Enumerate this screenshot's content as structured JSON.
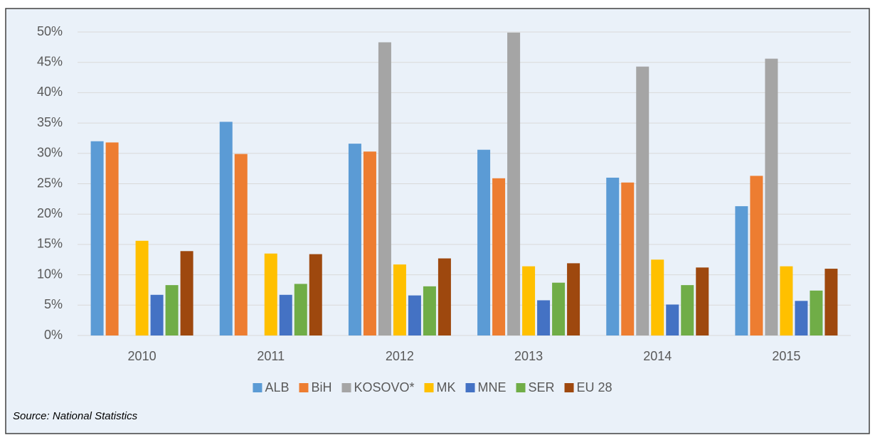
{
  "chart_data": {
    "type": "bar",
    "categories": [
      "2010",
      "2011",
      "2012",
      "2013",
      "2014",
      "2015"
    ],
    "series": [
      {
        "name": "ALB",
        "color": "#5b9bd5",
        "values": [
          32.0,
          35.2,
          31.6,
          30.6,
          26.0,
          21.3
        ]
      },
      {
        "name": "BiH",
        "color": "#ed7d31",
        "values": [
          31.8,
          29.9,
          30.3,
          25.9,
          25.2,
          26.3
        ]
      },
      {
        "name": "KOSOVO*",
        "color": "#a5a5a5",
        "values": [
          null,
          null,
          48.3,
          49.9,
          44.3,
          45.6
        ]
      },
      {
        "name": "MK",
        "color": "#ffc000",
        "values": [
          15.6,
          13.5,
          11.7,
          11.4,
          12.5,
          11.4
        ]
      },
      {
        "name": "MNE",
        "color": "#4472c4",
        "values": [
          6.7,
          6.7,
          6.6,
          5.8,
          5.1,
          5.7
        ]
      },
      {
        "name": "SER",
        "color": "#70ad47",
        "values": [
          8.3,
          8.5,
          8.1,
          8.7,
          8.3,
          7.4
        ]
      },
      {
        "name": "EU 28",
        "color": "#9e480e",
        "values": [
          13.9,
          13.4,
          12.7,
          11.9,
          11.2,
          11.0
        ]
      }
    ],
    "ylim": [
      0,
      50
    ],
    "yticks": [
      {
        "value": 0,
        "label": "0%"
      },
      {
        "value": 5,
        "label": "5%"
      },
      {
        "value": 10,
        "label": "10%"
      },
      {
        "value": 15,
        "label": "15%"
      },
      {
        "value": 20,
        "label": "20%"
      },
      {
        "value": 25,
        "label": "25%"
      },
      {
        "value": 30,
        "label": "30%"
      },
      {
        "value": 35,
        "label": "35%"
      },
      {
        "value": 40,
        "label": "40%"
      },
      {
        "value": 45,
        "label": "45%"
      },
      {
        "value": 50,
        "label": "50%"
      }
    ],
    "grid": true,
    "legend": "bottom",
    "source": "Source: National Statistics"
  }
}
